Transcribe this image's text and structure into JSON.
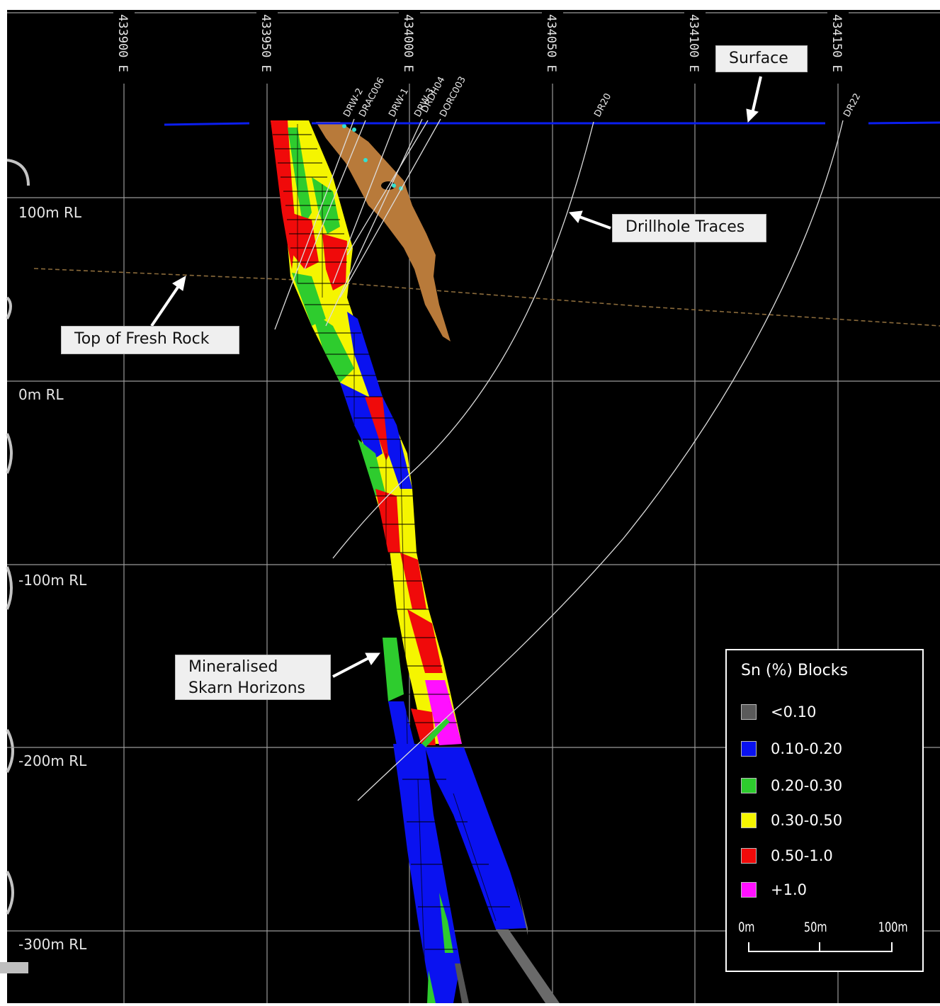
{
  "colors": {
    "background": "#000000",
    "grid": "#8a8a8a",
    "surface_line": "#0b1ef0",
    "weathering_line": "#8a6a3a",
    "oxide_body": "#b87a3a",
    "drill_trace": "#e6e6e6",
    "bin_lt_0_10": "#5a5a5a",
    "bin_0_10_0_20": "#0a12f0",
    "bin_0_20_0_30": "#2ecc2e",
    "bin_0_30_0_50": "#f5f500",
    "bin_0_50_1_0": "#f00a0a",
    "bin_gt_1_0": "#ff10ff"
  },
  "easting_labels": [
    "433900 E",
    "433950 E",
    "434000 E",
    "434050 E",
    "434100 E",
    "434150 E"
  ],
  "rl_labels": [
    "100m RL",
    "0m RL",
    "-100m RL",
    "-200m RL",
    "-300m RL"
  ],
  "drillholes": [
    "DRW-2",
    "DRAC006",
    "DRW-1",
    "DRW-3",
    "DRDH04",
    "DORC003",
    "DR20",
    "DR22"
  ],
  "callouts": {
    "surface": "Surface",
    "drillhole_traces": "Drillhole Traces",
    "top_fresh_rock": "Top of Fresh Rock",
    "skarn_line1": "Mineralised",
    "skarn_line2": "Skarn Horizons"
  },
  "legend": {
    "title": "Sn (%) Blocks",
    "items": [
      {
        "label": "<0.10",
        "color": "#5a5a5a"
      },
      {
        "label": "0.10-0.20",
        "color": "#0a12f0"
      },
      {
        "label": "0.20-0.30",
        "color": "#2ecc2e"
      },
      {
        "label": "0.30-0.50",
        "color": "#f5f500"
      },
      {
        "label": "0.50-1.0",
        "color": "#f00a0a"
      },
      {
        "label": "+1.0",
        "color": "#ff10ff"
      }
    ],
    "scale_labels": [
      "0m",
      "50m",
      "100m"
    ]
  }
}
